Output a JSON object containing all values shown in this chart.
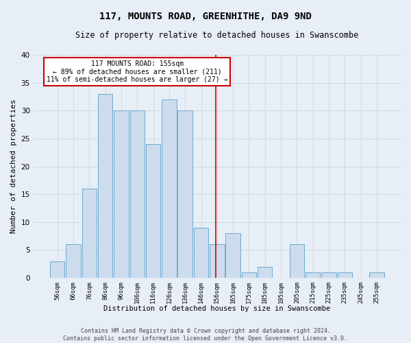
{
  "title": "117, MOUNTS ROAD, GREENHITHE, DA9 9ND",
  "subtitle": "Size of property relative to detached houses in Swanscombe",
  "xlabel_bottom": "Distribution of detached houses by size in Swanscombe",
  "ylabel": "Number of detached properties",
  "footer_line1": "Contains HM Land Registry data © Crown copyright and database right 2024.",
  "footer_line2": "Contains public sector information licensed under the Open Government Licence v3.0.",
  "bar_labels": [
    "56sqm",
    "66sqm",
    "76sqm",
    "86sqm",
    "96sqm",
    "106sqm",
    "116sqm",
    "126sqm",
    "136sqm",
    "146sqm",
    "156sqm",
    "165sqm",
    "175sqm",
    "185sqm",
    "195sqm",
    "205sqm",
    "215sqm",
    "225sqm",
    "235sqm",
    "245sqm",
    "255sqm"
  ],
  "bar_values": [
    3,
    6,
    16,
    33,
    30,
    30,
    24,
    32,
    30,
    9,
    6,
    8,
    1,
    2,
    0,
    6,
    1,
    1,
    1,
    0,
    1
  ],
  "bar_color": "#ccdcec",
  "bar_edge_color": "#6aaad4",
  "annotation_text_line1": "117 MOUNTS ROAD: 155sqm",
  "annotation_text_line2": "← 89% of detached houses are smaller (211)",
  "annotation_text_line3": "11% of semi-detached houses are larger (27) →",
  "annotation_box_facecolor": "#ffffff",
  "annotation_box_edgecolor": "#cc0000",
  "annotation_line_color": "#cc0000",
  "grid_color": "#c8d4e4",
  "background_color": "#e8eef6",
  "ylim": [
    0,
    40
  ],
  "yticks": [
    0,
    5,
    10,
    15,
    20,
    25,
    30,
    35,
    40
  ],
  "title_fontsize": 10,
  "subtitle_fontsize": 8.5,
  "ylabel_fontsize": 8,
  "xtick_fontsize": 6.5,
  "ytick_fontsize": 7.5,
  "footer_fontsize": 6,
  "annotation_fontsize": 7
}
